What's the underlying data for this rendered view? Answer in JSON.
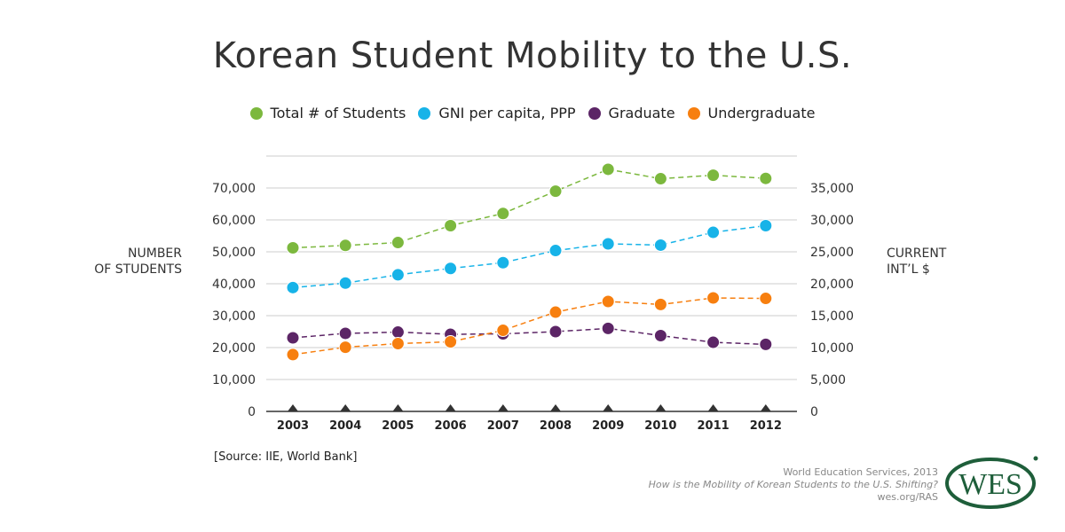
{
  "title": "Korean Student Mobility to the U.S.",
  "legend": [
    {
      "label": "Total # of Students",
      "color": "#7cb83e"
    },
    {
      "label": "GNI per capita, PPP",
      "color": "#17b3e8"
    },
    {
      "label": "Graduate",
      "color": "#5c2566"
    },
    {
      "label": "Undergraduate",
      "color": "#f77f0f"
    }
  ],
  "axis_titles": {
    "left_line1": "NUMBER",
    "left_line2": "OF STUDENTS",
    "right_line1": "CURRENT",
    "right_line2": "INT’L $"
  },
  "source": "[Source: IIE, World Bank]",
  "credit": {
    "line1": "World Education Services, 2013",
    "line2": "How is the Mobility of Korean Students to the U.S. Shifting?",
    "line3": "wes.org/RAS"
  },
  "logo": {
    "text": "WES",
    "color": "#1e5e3a"
  },
  "chart_data": {
    "type": "line",
    "title": "Korean Student Mobility to the U.S.",
    "xlabel": "",
    "ylabel": "NUMBER OF STUDENTS",
    "y2label": "CURRENT INT’L $",
    "x": [
      "2003",
      "2004",
      "2005",
      "2006",
      "2007",
      "2008",
      "2009",
      "2010",
      "2011",
      "2012"
    ],
    "ylim": [
      0,
      80000
    ],
    "y2lim": [
      0,
      40000
    ],
    "yticks": [
      "0",
      "10,000",
      "20,000",
      "30,000",
      "40,000",
      "50,000",
      "60,000",
      "70,000"
    ],
    "y2ticks": [
      "0",
      "5,000",
      "10,000",
      "15,000",
      "20,000",
      "25,000",
      "30,000",
      "35,000"
    ],
    "grid": true,
    "legend_position": "top-center",
    "series": [
      {
        "name": "Total # of Students",
        "axis": "left",
        "color": "#7cb83e",
        "values": [
          51250,
          52000,
          52900,
          58200,
          62000,
          69000,
          75850,
          72900,
          74000,
          73000
        ]
      },
      {
        "name": "GNI per capita, PPP",
        "axis": "right",
        "color": "#17b3e8",
        "values": [
          19400,
          20100,
          21400,
          22400,
          23300,
          25200,
          26250,
          26050,
          28050,
          29100
        ]
      },
      {
        "name": "Graduate",
        "axis": "left",
        "color": "#5c2566",
        "values": [
          23050,
          24450,
          24850,
          24150,
          24300,
          25000,
          26000,
          23750,
          21650,
          21000
        ]
      },
      {
        "name": "Undergraduate",
        "axis": "left",
        "color": "#f77f0f",
        "values": [
          17800,
          20100,
          21250,
          21800,
          25400,
          31100,
          34450,
          33500,
          35550,
          35400
        ]
      }
    ]
  }
}
